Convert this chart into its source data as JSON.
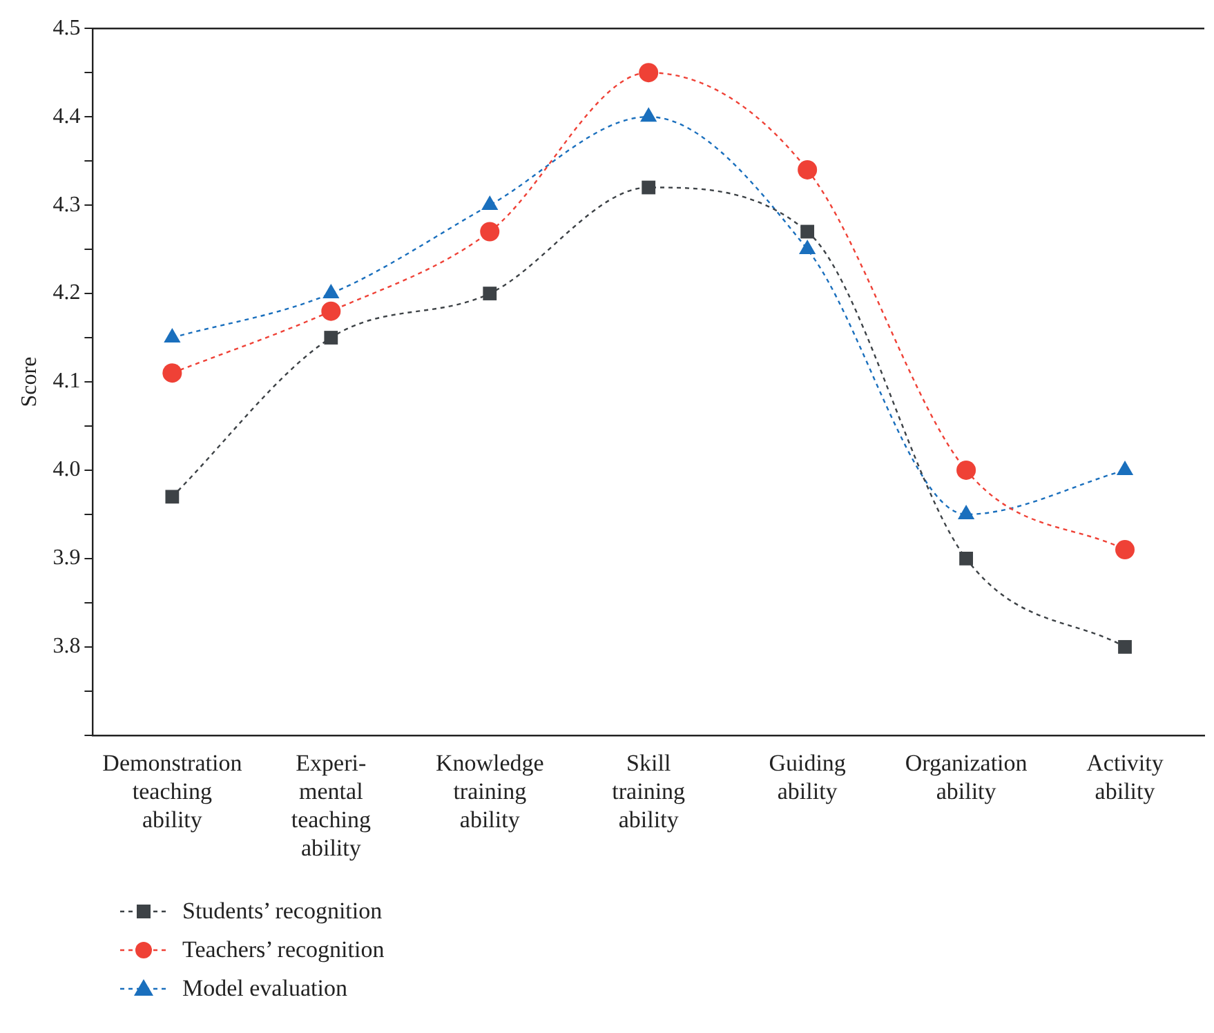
{
  "chart_data": {
    "type": "line",
    "ylabel": "Score",
    "categories": [
      "Demonstration\nteaching\nability",
      "Experi-\nmental\nteaching\nability",
      "Knowledge\ntraining\nability",
      "Skill\ntraining\nability",
      "Guiding\nability",
      "Organization\nability",
      "Activity\nability"
    ],
    "series": [
      {
        "name": "Students’ recognition",
        "color": "#3d4246",
        "marker": "square",
        "values": [
          3.97,
          4.15,
          4.2,
          4.32,
          4.27,
          3.9,
          3.8
        ]
      },
      {
        "name": "Teachers’ recognition",
        "color": "#ef4136",
        "marker": "circle",
        "values": [
          4.11,
          4.18,
          4.27,
          4.45,
          4.34,
          4.0,
          3.91
        ]
      },
      {
        "name": "Model evaluation",
        "color": "#1a6fbd",
        "marker": "triangle",
        "values": [
          4.15,
          4.2,
          4.3,
          4.4,
          4.25,
          3.95,
          4.0
        ]
      }
    ],
    "ylim": [
      3.7,
      4.5
    ],
    "yticks": [
      {
        "value": 3.7,
        "label": null
      },
      {
        "value": 3.75,
        "label": null
      },
      3.8,
      {
        "value": 3.85,
        "label": null
      },
      3.9,
      {
        "value": 3.95,
        "label": null
      },
      "4.0",
      {
        "value": 4.05,
        "label": null
      },
      4.1,
      {
        "value": 4.15,
        "label": null
      },
      4.2,
      {
        "value": 4.25,
        "label": null
      },
      4.3,
      {
        "value": 4.35,
        "label": null
      },
      4.4,
      {
        "value": 4.45,
        "label": null
      },
      4.5
    ],
    "grid": false,
    "legend": "bottom left",
    "line_style": "dashed"
  }
}
